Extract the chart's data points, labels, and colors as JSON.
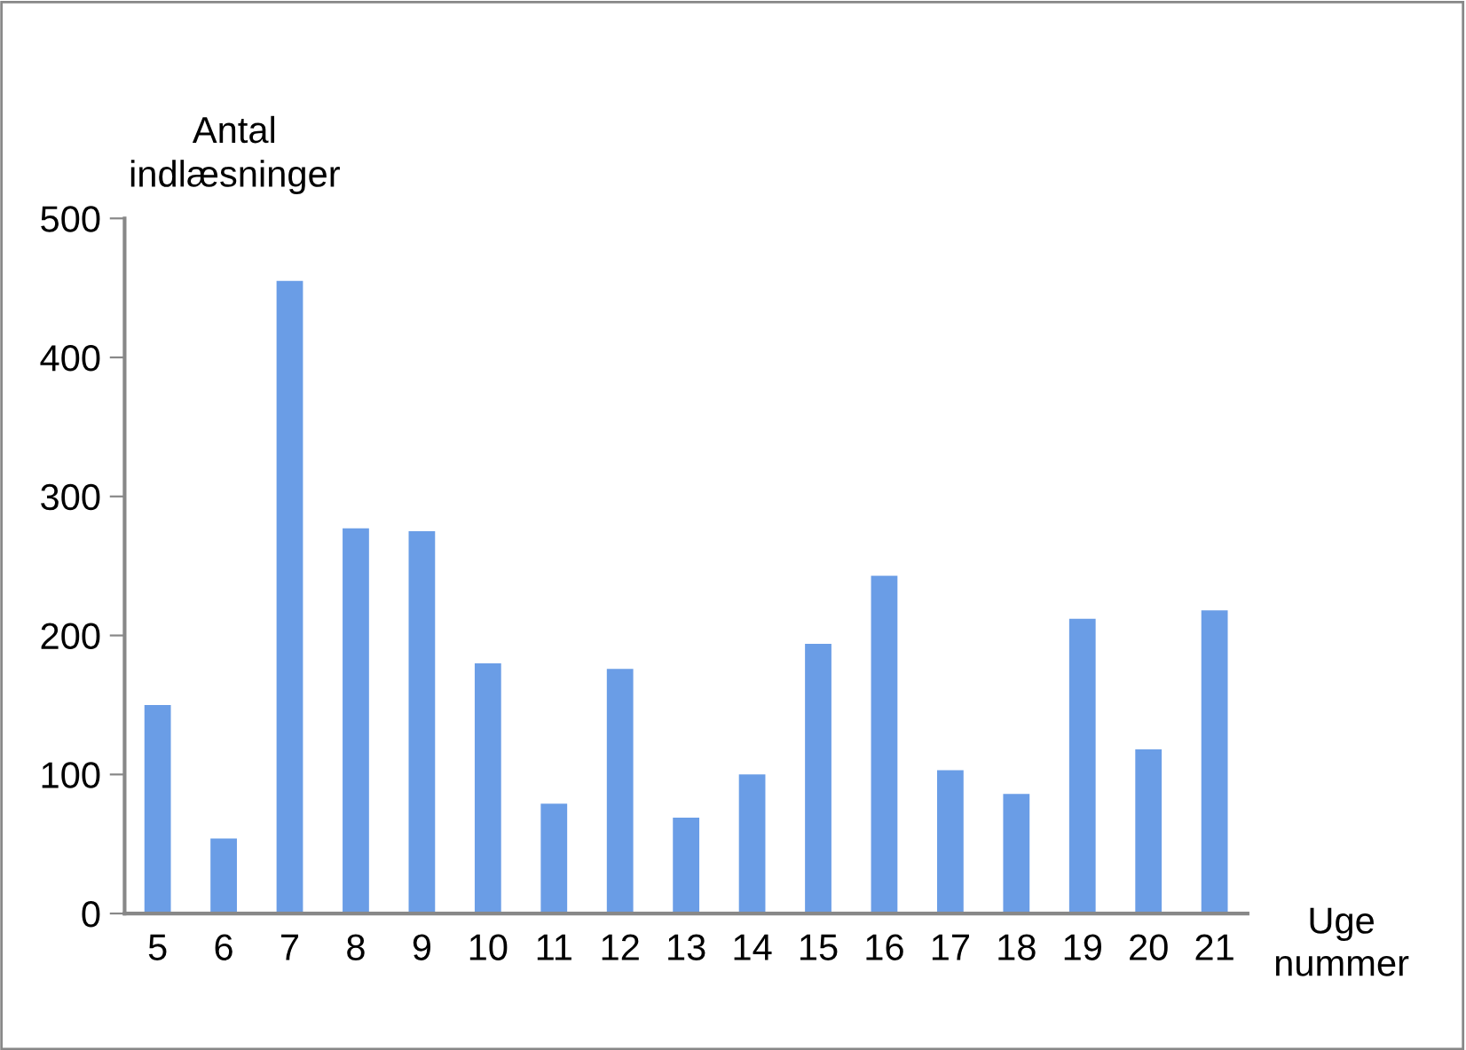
{
  "chart_data": {
    "type": "bar",
    "ylabel": "Antal\nindlæsninger",
    "xlabel": "Uge\nnummer",
    "categories": [
      "5",
      "6",
      "7",
      "8",
      "9",
      "10",
      "11",
      "12",
      "13",
      "14",
      "15",
      "16",
      "17",
      "18",
      "19",
      "20",
      "21"
    ],
    "values": [
      150,
      54,
      455,
      277,
      275,
      180,
      79,
      176,
      69,
      100,
      194,
      243,
      103,
      86,
      212,
      118,
      218
    ],
    "color": "#6a9de6",
    "ylim": [
      0,
      500
    ],
    "yticks": [
      0,
      100,
      200,
      300,
      400,
      500
    ],
    "grid": false,
    "legend": false
  }
}
